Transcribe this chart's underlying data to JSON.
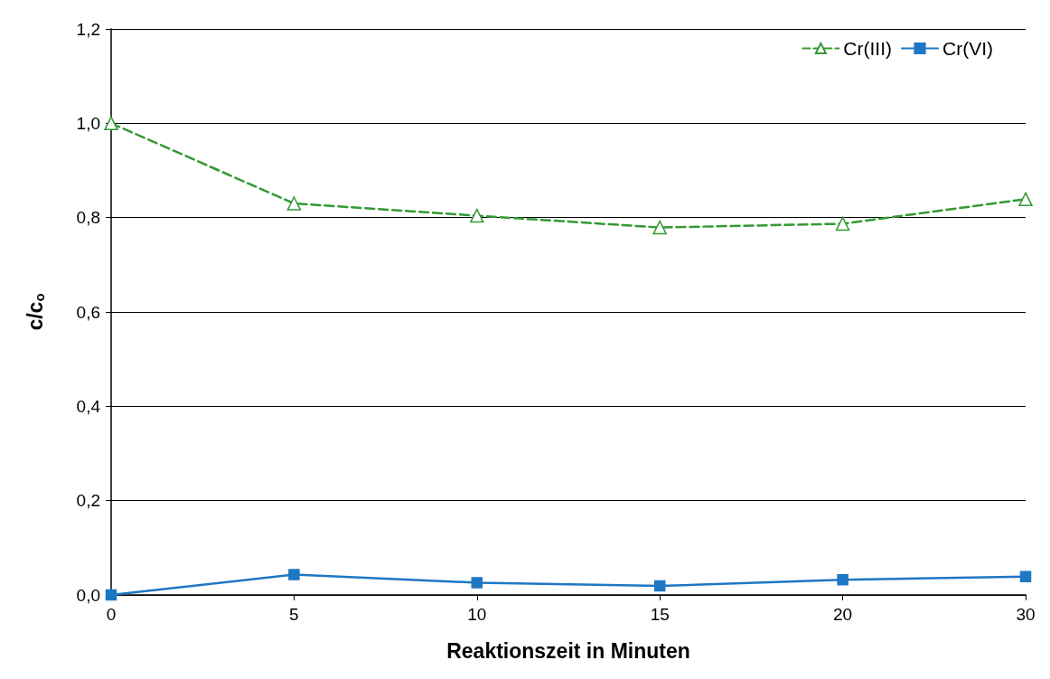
{
  "chart_data": {
    "type": "line",
    "xlabel": "Reaktionszeit in Minuten",
    "ylabel": "c/c$_{o}$",
    "categories": [
      "0",
      "5",
      "10",
      "15",
      "20",
      "30"
    ],
    "series": [
      {
        "name": "Cr(III)",
        "color": "#339933",
        "marker": "triangle",
        "line_style": "dashed",
        "values": [
          1.0,
          0.83,
          0.804,
          0.779,
          0.787,
          0.839
        ]
      },
      {
        "name": "Cr(VI)",
        "color": "#1f77c4",
        "marker": "square",
        "line_style": "solid",
        "values": [
          0.0,
          0.043,
          0.026,
          0.019,
          0.032,
          0.039
        ]
      }
    ],
    "ylim": [
      0,
      1.2
    ],
    "yticks": [
      {
        "value": 0,
        "label": "0,0"
      },
      {
        "value": 0.2,
        "label": "0,2"
      },
      {
        "value": 0.4,
        "label": "0,4"
      },
      {
        "value": 0.6,
        "label": "0,6"
      },
      {
        "value": 0.8,
        "label": "0,8"
      },
      {
        "value": 1.0,
        "label": "1,0"
      },
      {
        "value": 1.2,
        "label": "1,2"
      }
    ],
    "grid": "y",
    "legend": "top right"
  }
}
